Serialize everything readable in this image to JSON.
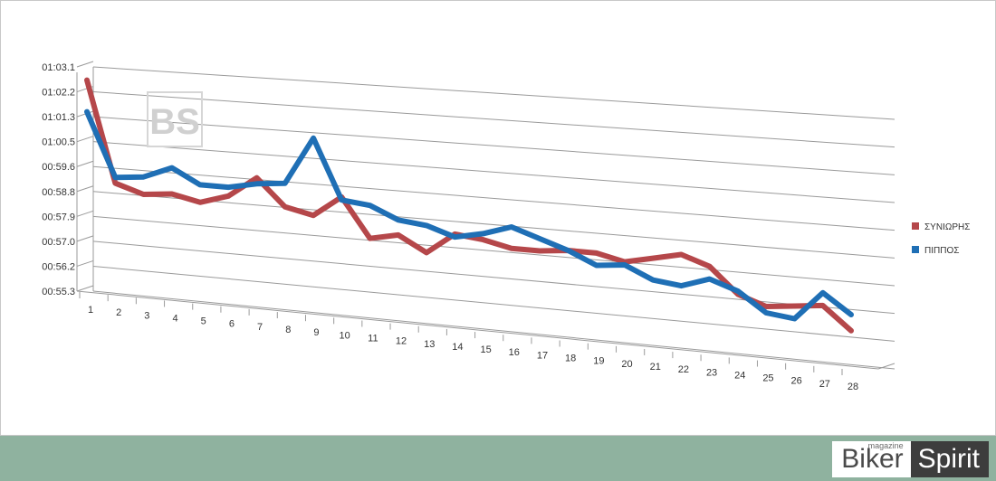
{
  "chart_data": {
    "type": "line",
    "title": "",
    "xlabel": "",
    "ylabel": "",
    "categories": [
      "1",
      "2",
      "3",
      "4",
      "5",
      "6",
      "7",
      "8",
      "9",
      "10",
      "11",
      "12",
      "13",
      "14",
      "15",
      "16",
      "17",
      "18",
      "19",
      "20",
      "21",
      "22",
      "23",
      "24",
      "25",
      "26",
      "27",
      "28"
    ],
    "y_ticks": [
      "00:55.3",
      "00:56.2",
      "00:57.0",
      "00:57.9",
      "00:58.8",
      "00:59.6",
      "01:00.5",
      "01:01.3",
      "01:02.2",
      "01:03.1"
    ],
    "ylim": [
      "00:55.3",
      "01:03.1"
    ],
    "legend_position": "right",
    "grid": true,
    "series": [
      {
        "name": "ΣΥΝΙΩΡΗΣ",
        "color": "#b5474a",
        "values": [
          "01:02.2",
          "00:58.7",
          "00:58.4",
          "00:58.5",
          "00:58.3",
          "00:58.6",
          "00:59.3",
          "00:58.4",
          "00:58.2",
          "00:58.9",
          "00:57.6",
          "00:57.8",
          "00:57.3",
          "00:58.0",
          "00:57.9",
          "00:57.7",
          "00:57.7",
          "00:57.8",
          "00:57.8",
          "00:57.6",
          "00:57.8",
          "00:58.0",
          "00:57.7",
          "00:56.9",
          "00:56.6",
          "00:56.7",
          "00:56.8",
          "00:56.1"
        ]
      },
      {
        "name": "ΠΙΠΠΟΣ",
        "color": "#1f6fb5",
        "values": [
          "01:01.1",
          "00:58.9",
          "00:59.0",
          "00:59.4",
          "00:58.9",
          "00:58.9",
          "00:59.1",
          "00:59.2",
          "01:00.8",
          "00:58.8",
          "00:58.7",
          "00:58.3",
          "00:58.2",
          "00:57.9",
          "00:58.1",
          "00:58.4",
          "00:58.1",
          "00:57.8",
          "00:57.4",
          "00:57.5",
          "00:57.1",
          "00:57.0",
          "00:57.3",
          "00:57.0",
          "00:56.4",
          "00:56.3",
          "00:57.2",
          "00:56.6"
        ]
      }
    ]
  },
  "watermark": "BS",
  "brand": {
    "word1": "Biker",
    "word2": "Spirit",
    "sub": "magazine"
  }
}
